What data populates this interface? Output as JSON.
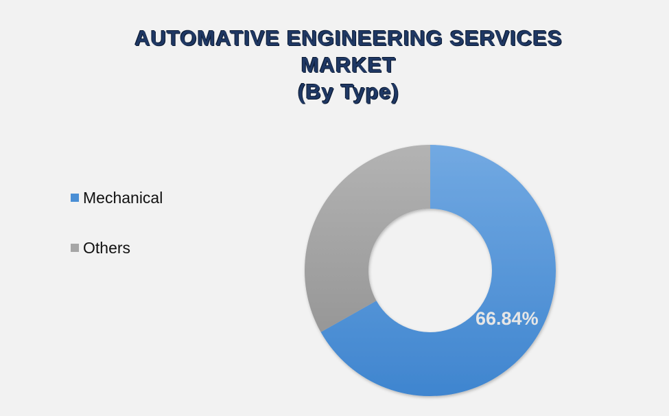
{
  "chart_data": {
    "type": "pie",
    "title_lines": [
      "AUTOMATIVE ENGINEERING SERVICES",
      "MARKET",
      "(By Type)"
    ],
    "categories": [
      "Mechanical",
      "Others"
    ],
    "values": [
      66.84,
      33.16
    ],
    "data_labels": [
      "66.84%",
      ""
    ],
    "colors": [
      "#4a8fd5",
      "#a6a6a6"
    ],
    "legend_position": "left"
  }
}
